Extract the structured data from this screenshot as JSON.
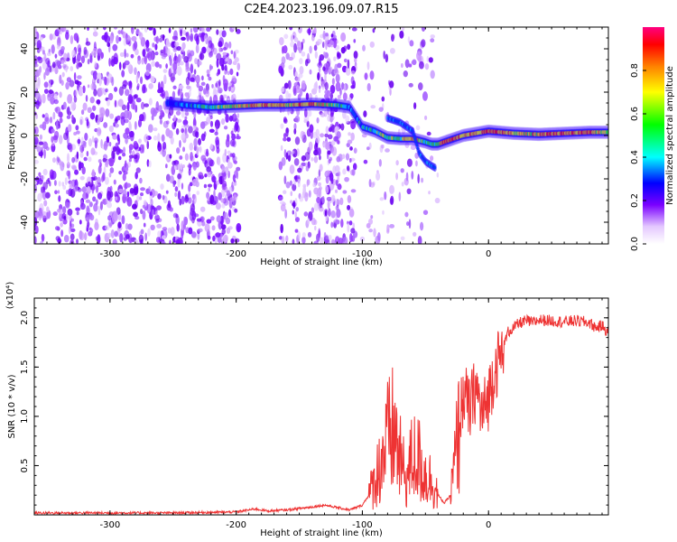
{
  "chart_data": [
    {
      "type": "heatmap",
      "title": "C2E4.2023.196.09.07.R15",
      "xlabel": "Height of straight line (km)",
      "ylabel": "Frequency (Hz)",
      "xlim": [
        -360,
        95
      ],
      "ylim": [
        -50,
        50
      ],
      "x_ticks": [
        -300,
        -200,
        -100,
        0
      ],
      "x_tick_labels": [
        "-300",
        "-200",
        "-100",
        "0"
      ],
      "y_ticks": [
        -40,
        -20,
        0,
        20,
        40
      ],
      "y_tick_labels": [
        "-40",
        "-20",
        "0",
        "20",
        "40"
      ],
      "colorbar": {
        "label": "Normalized spectral amplitude",
        "range": [
          0,
          1
        ],
        "ticks": [
          0.0,
          0.2,
          0.4,
          0.6,
          0.8
        ],
        "tick_labels": [
          "0.0",
          "0.2",
          "0.4",
          "0.6",
          "0.8"
        ]
      },
      "ridge": {
        "x": [
          -255,
          -240,
          -220,
          -200,
          -180,
          -160,
          -140,
          -120,
          -110,
          -100,
          -90,
          -80,
          -70,
          -60,
          -50,
          -45,
          -40,
          -35,
          -30,
          -20,
          -10,
          0,
          10,
          20,
          40,
          60,
          80,
          95
        ],
        "y": [
          15,
          14,
          13,
          13.5,
          14,
          14,
          14.5,
          14,
          13,
          4,
          2,
          -1,
          -1.5,
          -1.5,
          -3,
          -4,
          -4,
          -3,
          -2,
          0,
          1,
          2,
          1.5,
          1,
          0.5,
          1,
          1.5,
          1.5
        ],
        "amplitude": [
          0.3,
          0.4,
          0.55,
          0.7,
          0.8,
          0.75,
          0.8,
          0.6,
          0.4,
          0.45,
          0.55,
          0.6,
          0.65,
          0.7,
          0.6,
          0.6,
          0.7,
          0.8,
          0.85,
          0.8,
          0.75,
          0.9,
          0.85,
          0.7,
          0.75,
          0.8,
          0.85,
          0.6
        ]
      },
      "branch": {
        "x": [
          -80,
          -70,
          -60,
          -55,
          -50,
          -45,
          -42
        ],
        "y": [
          8,
          6,
          2,
          -8,
          -12,
          -14,
          -15
        ]
      }
    },
    {
      "type": "line",
      "title": "",
      "xlabel": "Height of straight line (km)",
      "ylabel": "SNR (10 * v/v)",
      "y_multiplier": "(x10⁴)",
      "xlim": [
        -360,
        95
      ],
      "ylim": [
        0,
        2.2
      ],
      "x_ticks": [
        -300,
        -200,
        -100,
        0
      ],
      "x_tick_labels": [
        "-300",
        "-200",
        "-100",
        "0"
      ],
      "y_ticks": [
        0.5,
        1.0,
        1.5,
        2.0
      ],
      "y_tick_labels": [
        "0.5",
        "1.0",
        "1.5",
        "2.0"
      ],
      "color": "#ee3333",
      "series": [
        {
          "x": [
            -360,
            -300,
            -250,
            -200,
            -185,
            -175,
            -160,
            -140,
            -130,
            -110,
            -100,
            -95,
            -90,
            -85,
            -80,
            -75,
            -70,
            -65,
            -60,
            -55,
            -50,
            -45,
            -40,
            -35,
            -30,
            -25,
            -20,
            -15,
            -10,
            -5,
            0,
            5,
            10,
            15,
            20,
            25,
            30,
            35,
            40,
            50,
            60,
            70,
            80,
            85,
            90,
            95
          ],
          "y": [
            0.02,
            0.02,
            0.02,
            0.03,
            0.06,
            0.04,
            0.05,
            0.08,
            0.1,
            0.05,
            0.1,
            0.2,
            0.35,
            0.55,
            0.75,
            0.85,
            0.55,
            0.35,
            0.6,
            0.55,
            0.4,
            0.35,
            0.2,
            0.12,
            0.2,
            0.7,
            1.25,
            1.05,
            1.3,
            1.0,
            1.2,
            1.5,
            1.6,
            1.85,
            1.9,
            1.95,
            1.97,
            1.95,
            1.98,
            1.97,
            1.96,
            1.97,
            1.95,
            1.9,
            1.92,
            1.85
          ]
        }
      ]
    }
  ]
}
